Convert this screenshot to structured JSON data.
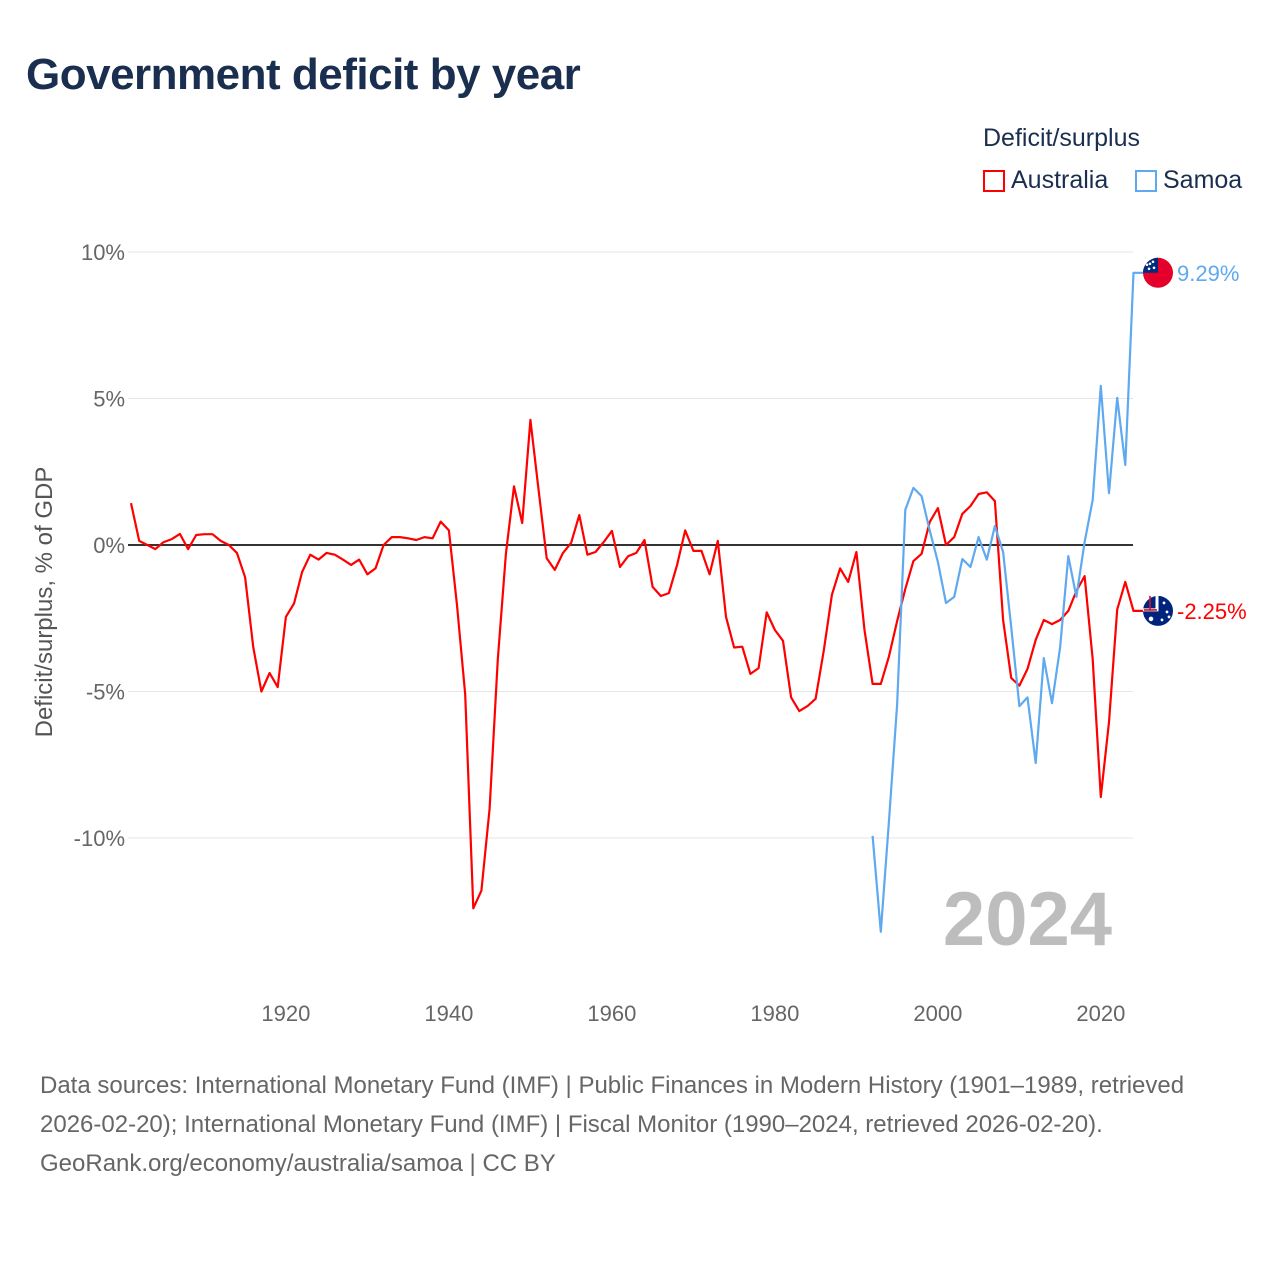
{
  "colors": {
    "australia": "#ff0000",
    "samoa": "#5ea9ef",
    "zero": "#333333",
    "grid": "#e6e6e6"
  },
  "chart_data": {
    "type": "line",
    "title": "Government deficit by year",
    "xlabel": "",
    "ylabel": "Deficit/surplus, % of GDP",
    "xlim": [
      1901,
      2024
    ],
    "ylim": [
      -14,
      10.5
    ],
    "yticks": [
      10,
      5,
      0,
      -5,
      -10
    ],
    "ytick_labels": [
      "10%",
      "5%",
      "0%",
      "-5%",
      "-10%"
    ],
    "xticks": [
      1920,
      1940,
      1960,
      1980,
      2000,
      2020
    ],
    "xtick_labels": [
      "1920",
      "1940",
      "1960",
      "1980",
      "2000",
      "2020"
    ],
    "grid": true,
    "legend_title": "Deficit/surplus",
    "legend_position": "top-right",
    "year_label": "2024",
    "series": [
      {
        "name": "Australia",
        "color": "#ff0000",
        "start_year": 1901,
        "end_label": "-2.25%",
        "flag": "australia-flag",
        "values": [
          1.43,
          0.14,
          0,
          -0.14,
          0.1,
          0.2,
          0.38,
          -0.14,
          0.34,
          0.37,
          0.37,
          0.14,
          0,
          -0.27,
          -1.1,
          -3.5,
          -5.0,
          -4.37,
          -4.85,
          -2.45,
          -2.0,
          -0.92,
          -0.33,
          -0.5,
          -0.27,
          -0.33,
          -0.5,
          -0.68,
          -0.5,
          -1.0,
          -0.8,
          0,
          0.27,
          0.27,
          0.23,
          0.17,
          0.27,
          0.23,
          0.8,
          0.5,
          -2.05,
          -5.1,
          -12.4,
          -11.8,
          -9.0,
          -3.9,
          -0.3,
          2.0,
          0.75,
          4.27,
          1.9,
          -0.45,
          -0.85,
          -0.27,
          0.07,
          1.02,
          -0.33,
          -0.24,
          0.1,
          0.48,
          -0.75,
          -0.38,
          -0.27,
          0.17,
          -1.43,
          -1.74,
          -1.64,
          -0.68,
          0.5,
          -0.2,
          -0.2,
          -1.0,
          0.14,
          -2.45,
          -3.5,
          -3.47,
          -4.4,
          -4.2,
          -2.3,
          -2.9,
          -3.27,
          -5.2,
          -5.67,
          -5.5,
          -5.25,
          -3.6,
          -1.7,
          -0.8,
          -1.26,
          -0.24,
          -2.9,
          -4.74,
          -4.74,
          -3.8,
          -2.6,
          -1.5,
          -0.55,
          -0.3,
          0.78,
          1.26,
          0,
          0.27,
          1.06,
          1.33,
          1.74,
          1.8,
          1.5,
          -2.56,
          -4.54,
          -4.8,
          -4.23,
          -3.24,
          -2.56,
          -2.7,
          -2.56,
          -2.25,
          -1.57,
          -1.06,
          -3.9,
          -8.6,
          -6.04,
          -2.2,
          -1.26,
          -2.25
        ]
      },
      {
        "name": "Samoa",
        "color": "#5ea9ef",
        "start_year": 1992,
        "end_label": "9.29%",
        "flag": "samoa-flag",
        "values": [
          -9.93,
          -13.2,
          -9.4,
          -5.46,
          1.2,
          1.95,
          1.67,
          0.5,
          -0.58,
          -1.98,
          -1.77,
          -0.48,
          -0.75,
          0.27,
          -0.5,
          0.65,
          -0.24,
          -2.8,
          -5.5,
          -5.2,
          -7.44,
          -3.86,
          -5.4,
          -3.5,
          -0.38,
          -1.77,
          0.1,
          1.54,
          5.43,
          1.77,
          5.02,
          2.73,
          9.29
        ]
      }
    ]
  },
  "footer": {
    "sources": "Data sources: International Monetary Fund (IMF) | Public Finances in Modern History (1901–1989, retrieved 2026-02-20); International Monetary Fund (IMF) | Fiscal Monitor (1990–2024, retrieved 2026-02-20).",
    "attribution": "GeoRank.org/economy/australia/samoa | CC BY"
  }
}
